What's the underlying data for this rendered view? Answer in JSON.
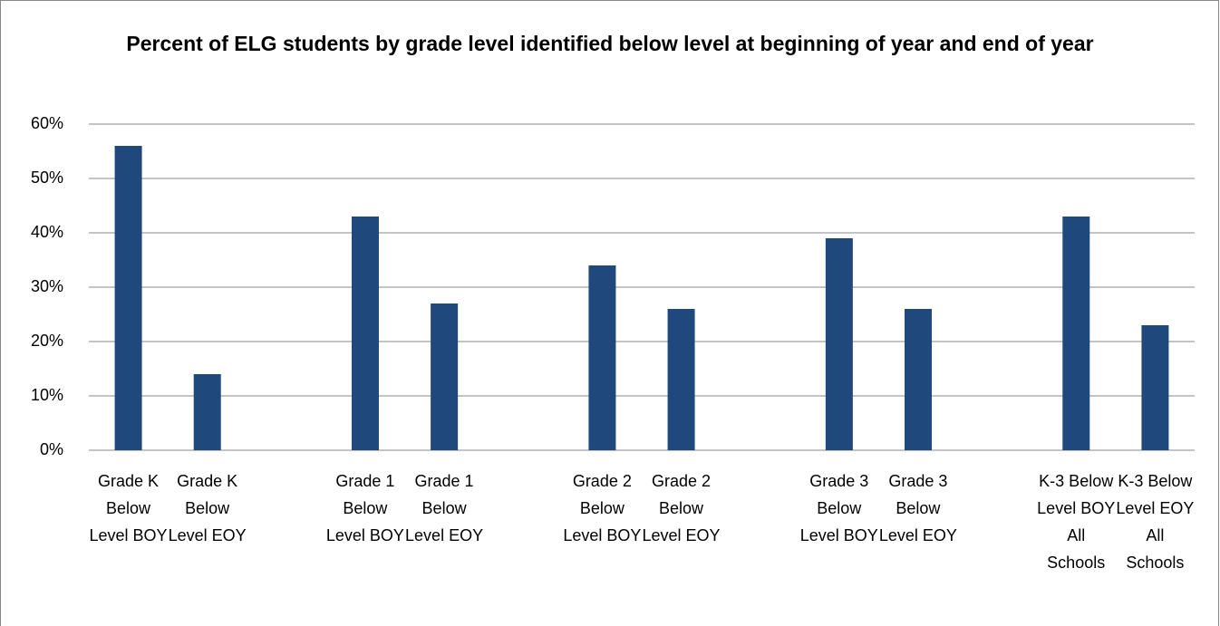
{
  "chart_data": {
    "type": "bar",
    "title": "Percent of ELG students by grade level identified below level at beginning of year and end of year",
    "categories": [
      "Grade K Below Level BOY",
      "Grade K Below Level EOY",
      null,
      "Grade 1 Below Level BOY",
      "Grade 1 Below Level EOY",
      null,
      "Grade 2 Below Level BOY",
      "Grade 2 Below Level EOY",
      null,
      "Grade 3 Below Level BOY",
      "Grade 3 Below Level EOY",
      null,
      "K-3 Below Level BOY All Schools",
      "K-3 Below Level EOY All Schools"
    ],
    "values": [
      56,
      14,
      null,
      43,
      27,
      null,
      34,
      26,
      null,
      39,
      26,
      null,
      43,
      23
    ],
    "color": "#1f497d",
    "ylim": [
      0,
      60
    ],
    "yticks": [
      {
        "value": 0,
        "label": "0%"
      },
      {
        "value": 10,
        "label": "10%"
      },
      {
        "value": 20,
        "label": "20%"
      },
      {
        "value": 30,
        "label": "30%"
      },
      {
        "value": 40,
        "label": "40%"
      },
      {
        "value": 50,
        "label": "50%"
      },
      {
        "value": 60,
        "label": "60%"
      }
    ],
    "grid": true
  }
}
